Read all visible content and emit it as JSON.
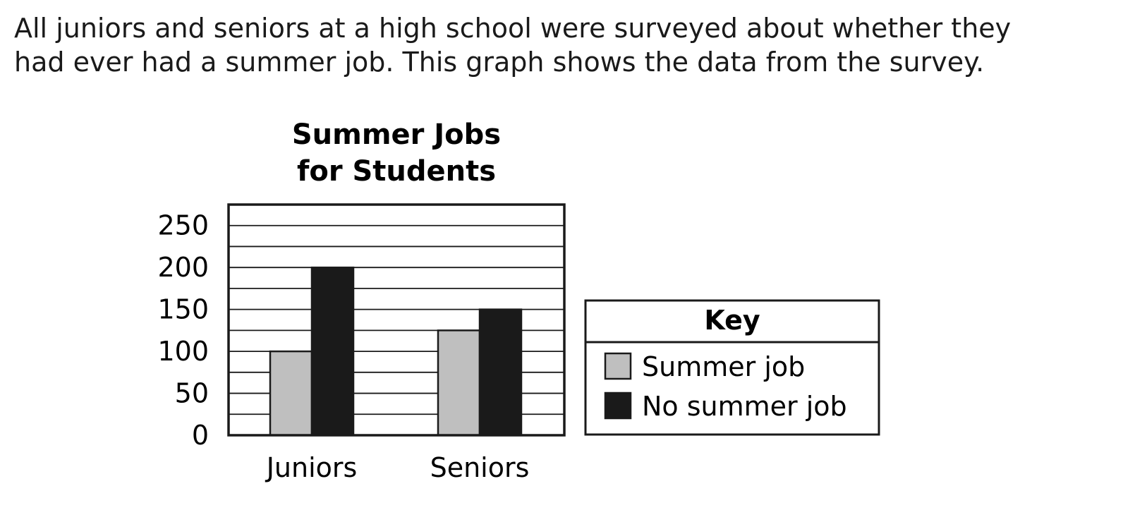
{
  "intro": {
    "line1": "All juniors and seniors at a high school were surveyed about whether they",
    "line2": "had ever had a summer job. This graph shows the data from the survey."
  },
  "chart_data": {
    "type": "bar",
    "title_lines": [
      "Summer Jobs",
      "for Students"
    ],
    "categories": [
      "Juniors",
      "Seniors"
    ],
    "series": [
      {
        "name": "Summer job",
        "values": [
          100,
          125
        ],
        "color": "#bfbfbf"
      },
      {
        "name": "No summer job",
        "values": [
          200,
          150
        ],
        "color": "#1a1a1a"
      }
    ],
    "ylim": [
      0,
      275
    ],
    "yticks": [
      0,
      50,
      100,
      150,
      200,
      250
    ],
    "grid_step": 25,
    "grid": true,
    "legend_title": "Key",
    "legend_position": "right"
  }
}
